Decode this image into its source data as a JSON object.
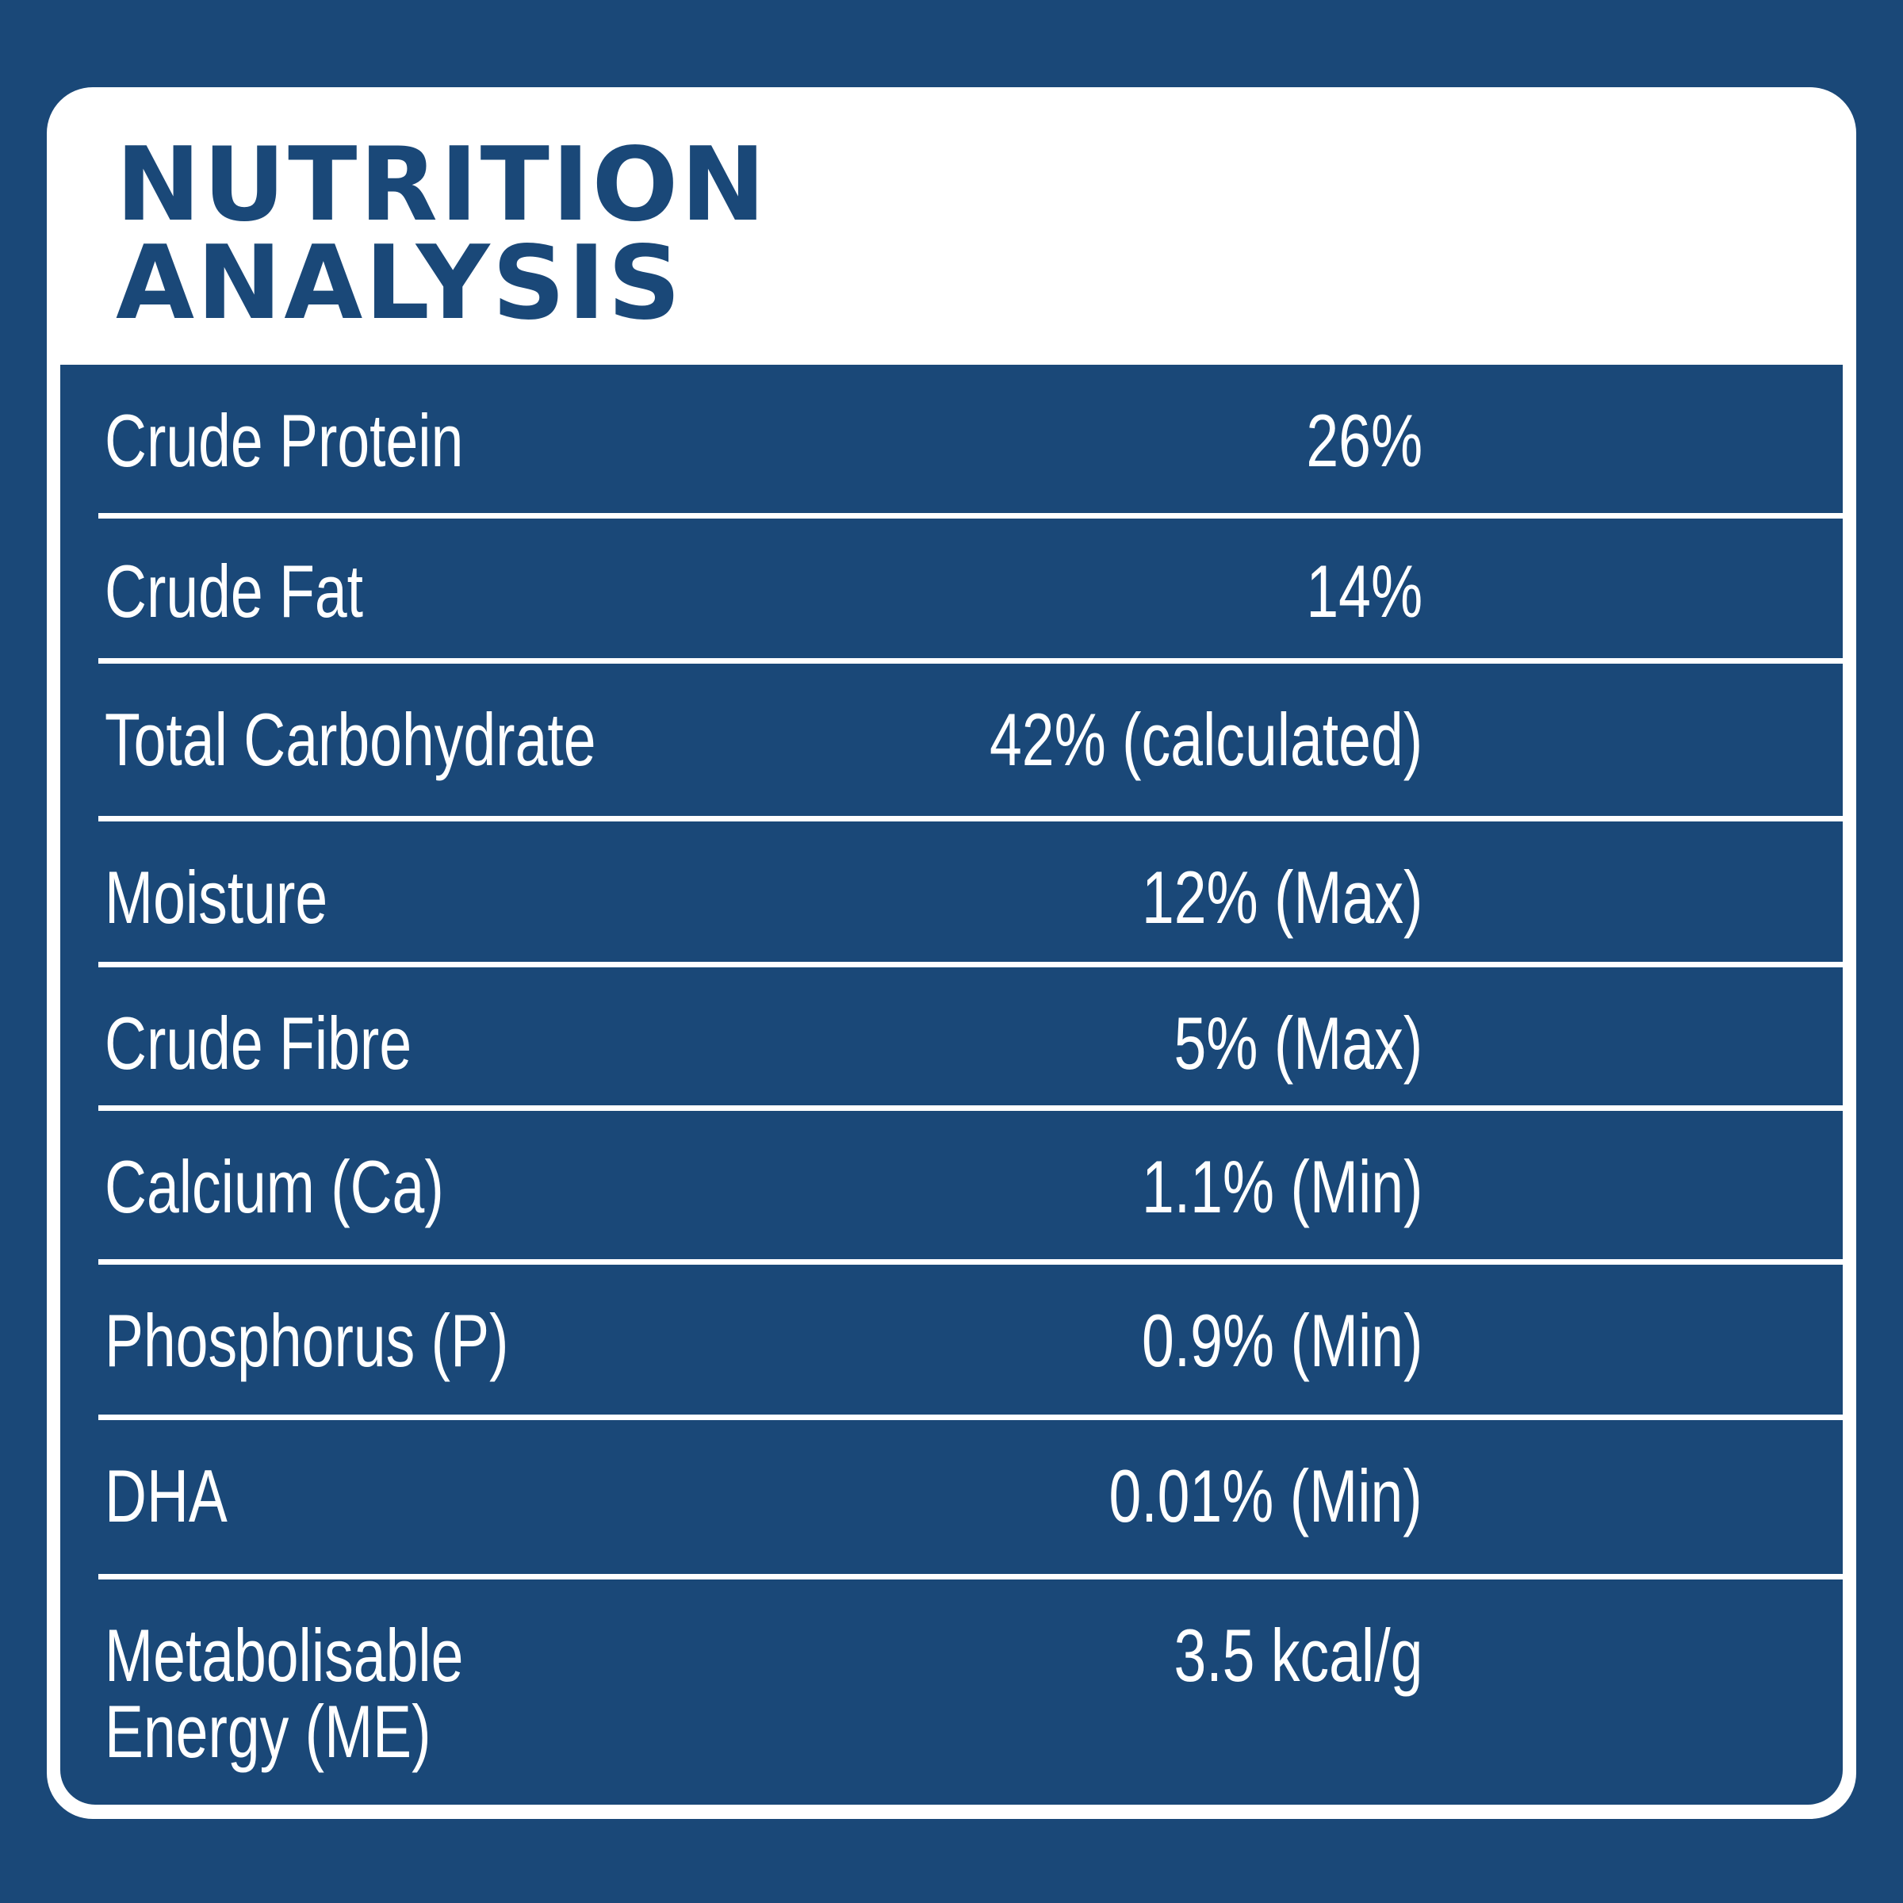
{
  "title": {
    "line1": "NUTRITION",
    "line2": "ANALYSIS"
  },
  "rows": [
    {
      "label": "Crude Protein",
      "value": "26%"
    },
    {
      "label": "Crude Fat",
      "value": "14%"
    },
    {
      "label": "Total Carbohydrate",
      "value": "42% (calculated)"
    },
    {
      "label": "Moisture",
      "value": "12% (Max)"
    },
    {
      "label": "Crude Fibre",
      "value": "5% (Max)"
    },
    {
      "label": "Calcium (Ca)",
      "value": "1.1% (Min)"
    },
    {
      "label": "Phosphorus (P)",
      "value": "0.9% (Min)"
    },
    {
      "label": "DHA",
      "value": "0.01% (Min)"
    },
    {
      "label": "Metabolisable\nEnergy (ME)",
      "value": "3.5 kcal/g"
    }
  ],
  "colors": {
    "background": "#1a4878",
    "card": "#ffffff",
    "text_on_panel": "#ffffff",
    "title": "#1a4878"
  }
}
